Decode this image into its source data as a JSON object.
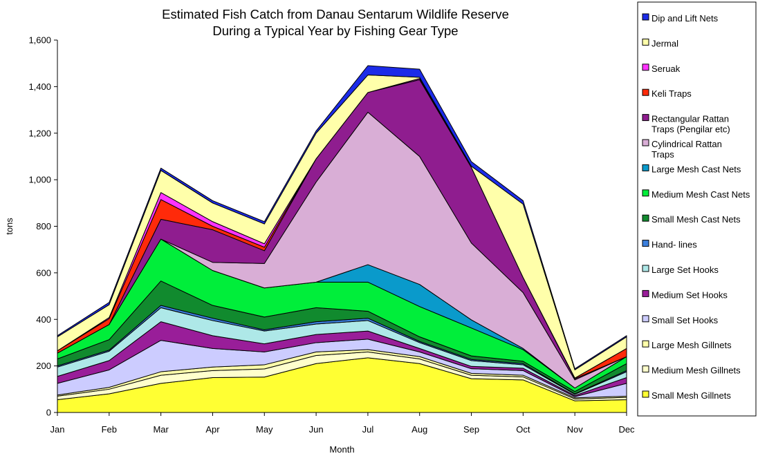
{
  "chart_data": {
    "type": "area",
    "stacked": true,
    "title": [
      "Estimated Fish Catch from Danau Sentarum Wildlife Reserve",
      "During a Typical Year by Fishing Gear Type"
    ],
    "xlabel": "Month",
    "ylabel": "tons",
    "ylim": [
      0,
      1600
    ],
    "yticks": [
      0,
      200,
      400,
      600,
      800,
      1000,
      1200,
      1400,
      1600
    ],
    "ytick_labels": [
      "0",
      "200",
      "400",
      "600",
      "800",
      "1,000",
      "1,200",
      "1,400",
      "1,600"
    ],
    "categories": [
      "Jan",
      "Feb",
      "Mar",
      "Apr",
      "May",
      "Jun",
      "Jul",
      "Aug",
      "Sep",
      "Oct",
      "Nov",
      "Dec"
    ],
    "grid": false,
    "legend_position": "right",
    "series": [
      {
        "name": "Small Mesh Gillnets",
        "color": "#FFFF33",
        "values": [
          55,
          80,
          125,
          150,
          152,
          210,
          235,
          210,
          145,
          140,
          50,
          55
        ]
      },
      {
        "name": "Medium Mesh Gillnets",
        "color": "#FFFFCC",
        "values": [
          15,
          20,
          35,
          30,
          35,
          35,
          25,
          20,
          15,
          13,
          8,
          10
        ]
      },
      {
        "name": "Large Mesh Gillnets",
        "color": "#FFFFAA",
        "values": [
          5,
          8,
          15,
          15,
          18,
          15,
          10,
          10,
          8,
          7,
          5,
          5
        ]
      },
      {
        "name": "Small Set Hooks",
        "color": "#CCCCFF",
        "values": [
          50,
          75,
          135,
          80,
          55,
          40,
          45,
          20,
          20,
          20,
          5,
          55
        ]
      },
      {
        "name": "Medium Set Hooks",
        "color": "#991E99",
        "values": [
          30,
          40,
          80,
          55,
          35,
          35,
          35,
          15,
          10,
          10,
          5,
          25
        ]
      },
      {
        "name": "Large Set Hooks",
        "color": "#AEE8E8",
        "values": [
          40,
          40,
          60,
          65,
          55,
          45,
          45,
          25,
          25,
          15,
          5,
          25
        ]
      },
      {
        "name": "Hand- lines",
        "color": "#3B7FDD",
        "values": [
          5,
          5,
          10,
          10,
          5,
          10,
          10,
          5,
          5,
          5,
          2,
          5
        ]
      },
      {
        "name": "Small Mesh Cast Nets",
        "color": "#118A2E",
        "values": [
          30,
          45,
          105,
          55,
          55,
          60,
          30,
          20,
          15,
          10,
          10,
          30
        ]
      },
      {
        "name": "Medium Mesh Cast Nets",
        "color": "#00EE3A",
        "values": [
          25,
          65,
          180,
          150,
          125,
          110,
          125,
          130,
          120,
          50,
          15,
          30
        ]
      },
      {
        "name": "Large Mesh Cast Nets",
        "color": "#0A9ACB",
        "values": [
          0,
          0,
          0,
          0,
          0,
          0,
          75,
          95,
          35,
          5,
          0,
          0
        ]
      },
      {
        "name": "Cylindrical Rattan Traps",
        "color": "#D9AED6",
        "values": [
          0,
          0,
          0,
          35,
          105,
          430,
          655,
          550,
          330,
          240,
          35,
          0
        ]
      },
      {
        "name": "Rectangular Rattan Traps (Pengilar etc)",
        "color": "#8F1D8F",
        "values": [
          0,
          0,
          85,
          140,
          55,
          100,
          85,
          330,
          325,
          65,
          5,
          0
        ]
      },
      {
        "name": "Keli Traps",
        "color": "#FF2A0A",
        "values": [
          10,
          25,
          85,
          15,
          15,
          0,
          0,
          0,
          0,
          0,
          3,
          35
        ]
      },
      {
        "name": "Seruak",
        "color": "#FF33FF",
        "values": [
          0,
          5,
          30,
          20,
          15,
          0,
          0,
          5,
          0,
          0,
          0,
          0
        ]
      },
      {
        "name": "Jermal",
        "color": "#FFFFAA",
        "values": [
          60,
          55,
          95,
          80,
          85,
          110,
          75,
          5,
          5,
          315,
          35,
          50
        ]
      },
      {
        "name": "Dip and Lift Nets",
        "color": "#1C2CE8",
        "values": [
          5,
          10,
          10,
          10,
          10,
          10,
          40,
          35,
          20,
          15,
          5,
          5
        ]
      }
    ]
  }
}
